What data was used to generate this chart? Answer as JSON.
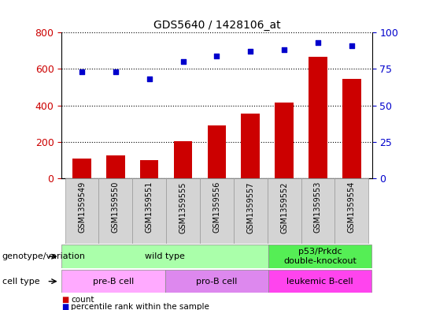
{
  "title": "GDS5640 / 1428106_at",
  "samples": [
    "GSM1359549",
    "GSM1359550",
    "GSM1359551",
    "GSM1359555",
    "GSM1359556",
    "GSM1359557",
    "GSM1359552",
    "GSM1359553",
    "GSM1359554"
  ],
  "counts": [
    110,
    125,
    100,
    205,
    290,
    355,
    415,
    665,
    545
  ],
  "percentiles": [
    73,
    73,
    68,
    80,
    84,
    87,
    88,
    93,
    91
  ],
  "ylim_left": [
    0,
    800
  ],
  "ylim_right": [
    0,
    100
  ],
  "yticks_left": [
    0,
    200,
    400,
    600,
    800
  ],
  "yticks_right": [
    0,
    25,
    50,
    75,
    100
  ],
  "bar_color": "#cc0000",
  "dot_color": "#0000cc",
  "genotype_row": {
    "label": "genotype/variation",
    "groups": [
      {
        "name": "wild type",
        "start": 0,
        "end": 6,
        "color": "#aaffaa"
      },
      {
        "name": "p53/Prkdc\ndouble-knockout",
        "start": 6,
        "end": 9,
        "color": "#55ee55"
      }
    ]
  },
  "celltype_row": {
    "label": "cell type",
    "groups": [
      {
        "name": "pre-B cell",
        "start": 0,
        "end": 3,
        "color": "#ffaaff"
      },
      {
        "name": "pro-B cell",
        "start": 3,
        "end": 6,
        "color": "#dd88ee"
      },
      {
        "name": "leukemic B-cell",
        "start": 6,
        "end": 9,
        "color": "#ff44ee"
      }
    ]
  },
  "legend_count_label": "count",
  "legend_pct_label": "percentile rank within the sample"
}
